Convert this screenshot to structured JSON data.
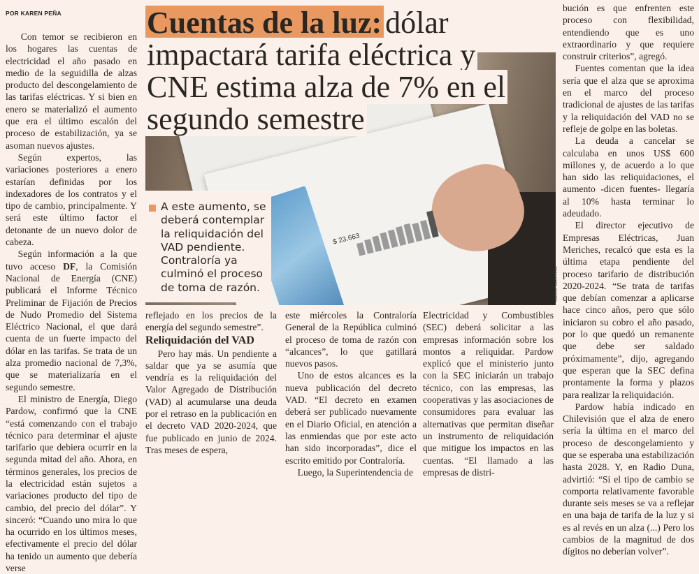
{
  "byline": "POR KAREN PEÑA",
  "headline": {
    "highlight": "Cuentas de la luz:",
    "lines": [
      "dólar",
      "impactará tarifa eléctrica y",
      "CNE estima alza de 7% en el",
      "segundo semestre"
    ]
  },
  "pull_quote": "A este aumento, se deberá contemplar la reliquidación del VAD pendiente. Contraloría ya culminó el proceso de toma de razón.",
  "photo": {
    "credit": "JULIO CASTRO",
    "bill_amount": "$ 23.663"
  },
  "colors": {
    "accent": "#e9995f",
    "background": "#fcf1ea"
  },
  "col1": {
    "p1": "Con temor se recibieron en los hogares las cuentas de electricidad el año pasado en medio de la seguidilla de alzas producto del descongelamiento de las tarifas eléctricas. Y si bien en enero se materializó el aumento que era el último escalón del proceso de estabilización, ya se asoman nuevos ajustes.",
    "p2": "Según expertos, las variaciones posteriores a enero estarían definidas por los indexadores de los contratos y el tipo de cambio, principalmente. Y será este último factor el detonante de un nuevo dolor de cabeza.",
    "p3_before": "Según información a la que tuvo acceso ",
    "p3_bold": "DF",
    "p3_after": ", la Comisión Nacional de Energía (CNE) publicará el Informe Técnico Preliminar de Fijación de Precios de Nudo Promedio del Sistema Eléctrico Nacional, el que dará cuenta de un fuerte impacto del dólar en las tarifas. Se trata de un alza promedio nacional de 7,3%, que se materializaría en el segundo semestre.",
    "p4": "El ministro de Energía, Diego Pardow, confirmó que la CNE “está comenzando con el trabajo técnico para determinar el ajuste tarifario que debiera ocurrir en la segunda mitad del año. Ahora, en términos generales, los precios de la electricidad están sujetos a variaciones producto del tipo de cambio, del precio del dólar”. Y sinceró: “Cuando uno mira lo que ha ocurrido en los últimos meses, efectivamente el precio del dólar ha tenido un aumento que debería verse"
  },
  "col2": {
    "p1": "reflejado en los precios de la energía del segundo semestre”.",
    "subhead": "Reliquidación del VAD",
    "p2": "Pero hay más. Un pendiente a saldar que ya se asumía que vendría es la reliquidación del Valor Agregado de Distribución (VAD) al acumularse una deuda por el retraso en la publicación en el decreto VAD 2020-2024, que fue publicado en junio de 2024. Tras meses de espera,"
  },
  "col3": {
    "p1": "este miércoles la Contraloría General de la República culminó el proceso de toma de razón con “alcances”, lo que gatillará nuevos pasos.",
    "p2": "Uno de estos alcances es la nueva publicación del decreto VAD. “El decreto en examen deberá ser publicado nuevamente en el Diario Oficial, en atención a las enmiendas que por este acto han sido incorporadas”, dice el escrito emitido por Contraloría.",
    "p3": "Luego, la Superintendencia de"
  },
  "col4": {
    "p1": "Electricidad y Combustibles (SEC) deberá solicitar a las empresas información sobre los montos a reliquidar. Pardow explicó que el ministerio junto con la SEC iniciarán un trabajo técnico, con las empresas, las cooperativas y las asociaciones de consumidores para evaluar las alternativas que permitan diseñar un instrumento de reliquidación que mitigue los impactos en las cuentas. “El llamado a las empresas de distri-"
  },
  "col5": {
    "p1": "bución es que enfrenten este proceso con flexibilidad, entendiendo que es uno extraordinario y que requiere construir criterios”, agregó.",
    "p2": "Fuentes comentan que la idea sería que el alza que se aproxima en el marco del proceso tradicional de ajustes de las tarifas y la reliquidación del VAD no se refleje de golpe en las boletas.",
    "p3": "La deuda a cancelar se calculaba en unos US$ 600 millones y, de acuerdo a lo que han sido las reliquidaciones, el aumento -dicen fuentes- llegaría al 10% hasta terminar lo adeudado.",
    "p4": "El director ejecutivo de Empresas Eléctricas, Juan Meriches, recalcó que esta es la última etapa pendiente del proceso tarifario de distribución 2020-2024. “Se trata de tarifas que debían comenzar a aplicarse hace cinco años, pero que sólo iniciaron su cobro el año pasado, por lo que quedó un remanente que debe ser saldado próximamente”, dijo, agregando que esperan que la SEC defina prontamente la forma y plazos para realizar la reliquidación.",
    "p5": "Pardow había indicado en Chilevisión que el alza de enero sería la última en el marco del proceso de descongelamiento y que se esperaba una estabilización hasta 2028. Y, en Radio Duna, advirtió: “Si el tipo de cambio se comporta relativamente favorable durante seis meses se va a reflejar en una baja de tarifa de la luz y si es al revés en un alza (...) Pero los cambios de la magnitud de dos dígitos no deberían volver”."
  }
}
